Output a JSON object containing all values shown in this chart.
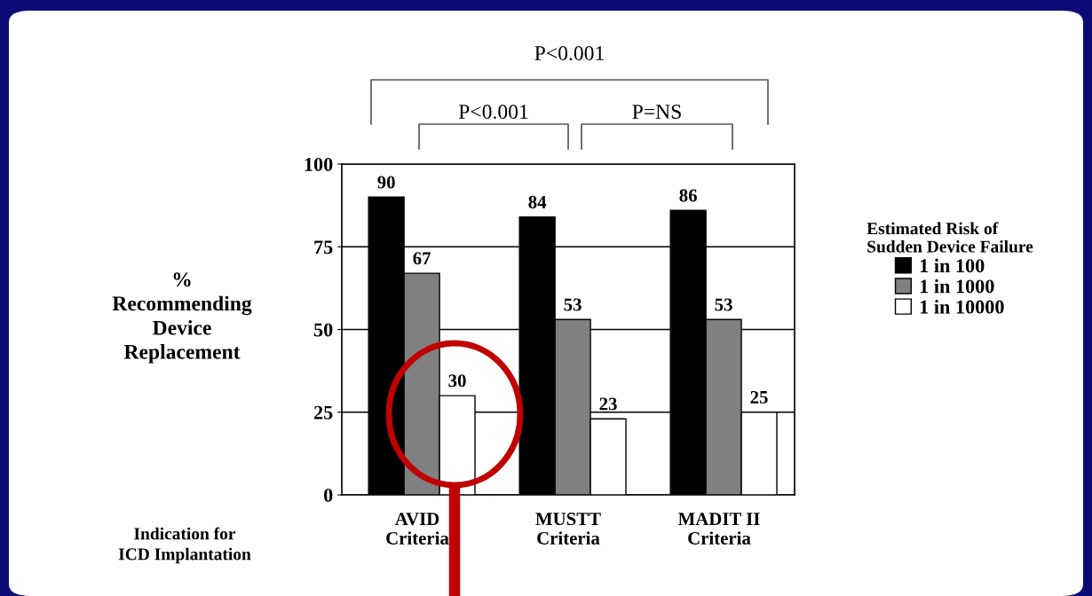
{
  "chart_data": {
    "type": "bar",
    "categories": [
      "AVID\nCriteria",
      "MUSTT\nCriteria",
      "MADIT II\nCriteria"
    ],
    "series": [
      {
        "name": "1 in 100",
        "color": "#000000",
        "values": [
          90,
          84,
          86
        ]
      },
      {
        "name": "1 in 1000",
        "color": "#808080",
        "values": [
          67,
          53,
          53
        ]
      },
      {
        "name": "1 in 10000",
        "color": "#ffffff",
        "values": [
          30,
          23,
          25
        ]
      }
    ],
    "ylim": [
      0,
      100
    ],
    "yticks": [
      0,
      25,
      50,
      75,
      100
    ],
    "grid": "y",
    "ylabel": "%\nRecommending\nDevice\nReplacement",
    "xlabel": "Indication for\nICD Implantation",
    "legend_title": "Estimated Risk of\nSudden Device Failure",
    "legend": "right",
    "data_labels": true,
    "annotations": [
      "P<0.001",
      "P<0.001",
      "P=NS"
    ]
  }
}
